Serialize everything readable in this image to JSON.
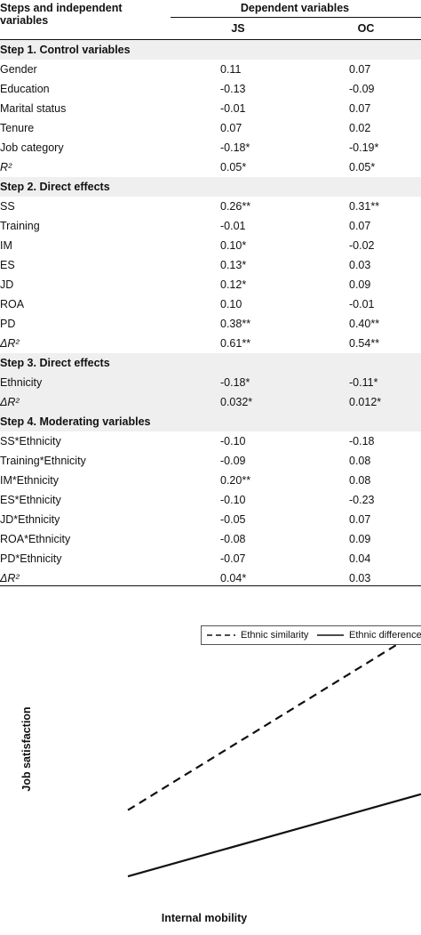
{
  "table": {
    "header": {
      "steps_label": "Steps and independent variables",
      "dependent_label": "Dependent variables",
      "col_js": "JS",
      "col_oc": "OC"
    },
    "rows": [
      {
        "type": "step",
        "label": "Step 1. Control variables"
      },
      {
        "type": "row",
        "label": "Gender",
        "js": "0.11",
        "oc": "0.07"
      },
      {
        "type": "row",
        "label": "Education",
        "js": "-0.13",
        "oc": "-0.09"
      },
      {
        "type": "row",
        "label": "Marital status",
        "js": "-0.01",
        "oc": "0.07"
      },
      {
        "type": "row",
        "label": "Tenure",
        "js": "0.07",
        "oc": "0.02"
      },
      {
        "type": "row",
        "label": "Job category",
        "js": "-0.18*",
        "oc": "-0.19*"
      },
      {
        "type": "row",
        "label": "R²",
        "js": "0.05*",
        "oc": "0.05*",
        "italic": true
      },
      {
        "type": "step",
        "label": "Step 2. Direct effects"
      },
      {
        "type": "row",
        "label": "SS",
        "js": "0.26**",
        "oc": "0.31**"
      },
      {
        "type": "row",
        "label": "Training",
        "js": "-0.01",
        "oc": "0.07"
      },
      {
        "type": "row",
        "label": "IM",
        "js": "0.10*",
        "oc": "-0.02"
      },
      {
        "type": "row",
        "label": "ES",
        "js": "0.13*",
        "oc": "0.03"
      },
      {
        "type": "row",
        "label": "JD",
        "js": "0.12*",
        "oc": "0.09"
      },
      {
        "type": "row",
        "label": "ROA",
        "js": "0.10",
        "oc": "-0.01"
      },
      {
        "type": "row",
        "label": "PD",
        "js": "0.38**",
        "oc": "0.40**"
      },
      {
        "type": "row",
        "label": "ΔR²",
        "js": "0.61**",
        "oc": "0.54**",
        "italic": true
      },
      {
        "type": "step",
        "label": "Step 3. Direct effects"
      },
      {
        "type": "row",
        "label": "Ethnicity",
        "js": "-0.18*",
        "oc": "-0.11*",
        "shade": true
      },
      {
        "type": "row",
        "label": "ΔR²",
        "js": "0.032*",
        "oc": "0.012*",
        "italic": true,
        "shade": true
      },
      {
        "type": "step",
        "label": "Step 4. Moderating variables"
      },
      {
        "type": "row",
        "label": "SS*Ethnicity",
        "js": "-0.10",
        "oc": "-0.18"
      },
      {
        "type": "row",
        "label": "Training*Ethnicity",
        "js": "-0.09",
        "oc": "0.08"
      },
      {
        "type": "row",
        "label": "IM*Ethnicity",
        "js": "0.20**",
        "oc": "0.08"
      },
      {
        "type": "row",
        "label": "ES*Ethnicity",
        "js": "-0.10",
        "oc": "-0.23"
      },
      {
        "type": "row",
        "label": "JD*Ethnicity",
        "js": "-0.05",
        "oc": "0.07"
      },
      {
        "type": "row",
        "label": "ROA*Ethnicity",
        "js": "-0.08",
        "oc": "0.09"
      },
      {
        "type": "row",
        "label": "PD*Ethnicity",
        "js": "-0.07",
        "oc": "0.04"
      },
      {
        "type": "row",
        "label": "ΔR²",
        "js": "0.04*",
        "oc": "0.03",
        "italic": true
      }
    ]
  },
  "chart_data": {
    "type": "line",
    "xlabel": "Internal mobility",
    "ylabel": "Job satisfaction",
    "legend_placement": "top-right",
    "series": [
      {
        "name": "Ethnic similarity",
        "style": "dashed",
        "color": "#111111",
        "x": [
          "low",
          "high"
        ],
        "y": [
          0.3,
          0.98
        ]
      },
      {
        "name": "Ethnic difference",
        "style": "solid",
        "color": "#111111",
        "x": [
          "low",
          "high"
        ],
        "y": [
          0.05,
          0.36
        ]
      }
    ]
  }
}
